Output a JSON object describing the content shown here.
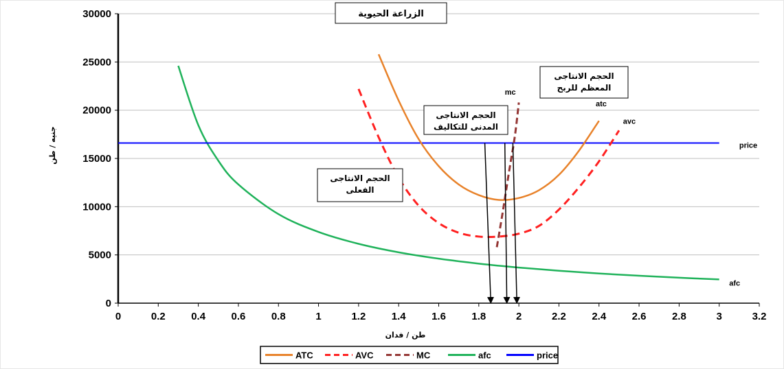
{
  "chart_data": {
    "type": "line",
    "title": "الزراعة الحيوية",
    "xlabel": "طن / فدان",
    "ylabel": "جنيه / طن",
    "xlim": [
      0,
      3.2
    ],
    "ylim": [
      0,
      30000
    ],
    "x_ticks": [
      0,
      0.2,
      0.4,
      0.6,
      0.8,
      1,
      1.2,
      1.4,
      1.6,
      1.8,
      2,
      2.2,
      2.4,
      2.6,
      2.8,
      3,
      3.2
    ],
    "y_ticks": [
      0,
      5000,
      10000,
      15000,
      20000,
      25000,
      30000
    ],
    "grid": "horizontal",
    "legend_position": "bottom",
    "series": [
      {
        "name": "ATC",
        "label": "atc",
        "color": "#e8822a",
        "dash": "solid",
        "x": [
          1.3,
          1.4,
          1.5,
          1.6,
          1.7,
          1.8,
          1.9,
          2.0,
          2.1,
          2.2,
          2.3,
          2.4
        ],
        "y": [
          25800,
          21000,
          17000,
          14200,
          12300,
          11200,
          10700,
          10900,
          11700,
          13300,
          15800,
          18900
        ]
      },
      {
        "name": "AVC",
        "label": "avc",
        "color": "#ff2020",
        "dash": "dashed",
        "x": [
          1.2,
          1.3,
          1.4,
          1.5,
          1.6,
          1.7,
          1.8,
          1.9,
          2.0,
          2.1,
          2.2,
          2.3,
          2.4,
          2.5
        ],
        "y": [
          22200,
          17200,
          13000,
          10100,
          8300,
          7300,
          6900,
          6900,
          7200,
          8000,
          9700,
          12000,
          14700,
          17900
        ]
      },
      {
        "name": "MC",
        "label": "mc",
        "color": "#943634",
        "dash": "dashed",
        "x": [
          1.89,
          1.92,
          1.95,
          1.98,
          2.0
        ],
        "y": [
          5800,
          9500,
          13500,
          17300,
          20800
        ]
      },
      {
        "name": "afc",
        "label": "afc",
        "color": "#1fb25a",
        "dash": "solid",
        "x": [
          0.3,
          0.4,
          0.5,
          0.6,
          0.8,
          1.0,
          1.2,
          1.4,
          1.6,
          1.8,
          2.0,
          2.2,
          2.4,
          2.6,
          2.8,
          3.0
        ],
        "y": [
          24600,
          18450,
          14760,
          12300,
          9225,
          7380,
          6150,
          5270,
          4610,
          4100,
          3690,
          3355,
          3075,
          2840,
          2635,
          2460
        ]
      },
      {
        "name": "price",
        "label": "price",
        "color": "#0000ff",
        "dash": "solid",
        "x": [
          0,
          3.0
        ],
        "y": [
          16600,
          16600
        ]
      }
    ],
    "annotations": [
      {
        "text_lines": [
          "الحجم الانتاجى",
          "الفعلى"
        ],
        "arrow_x": 1.86,
        "arrow_from_y": 16600
      },
      {
        "text_lines": [
          "الحجم الانتاجى",
          "المدنى للتكاليف"
        ],
        "arrow_x": 1.94,
        "arrow_from_y": 16600
      },
      {
        "text_lines": [
          "الحجم الانتاجى",
          "المعظم للربح"
        ],
        "arrow_x": 1.99,
        "arrow_from_y": 16600
      }
    ]
  }
}
